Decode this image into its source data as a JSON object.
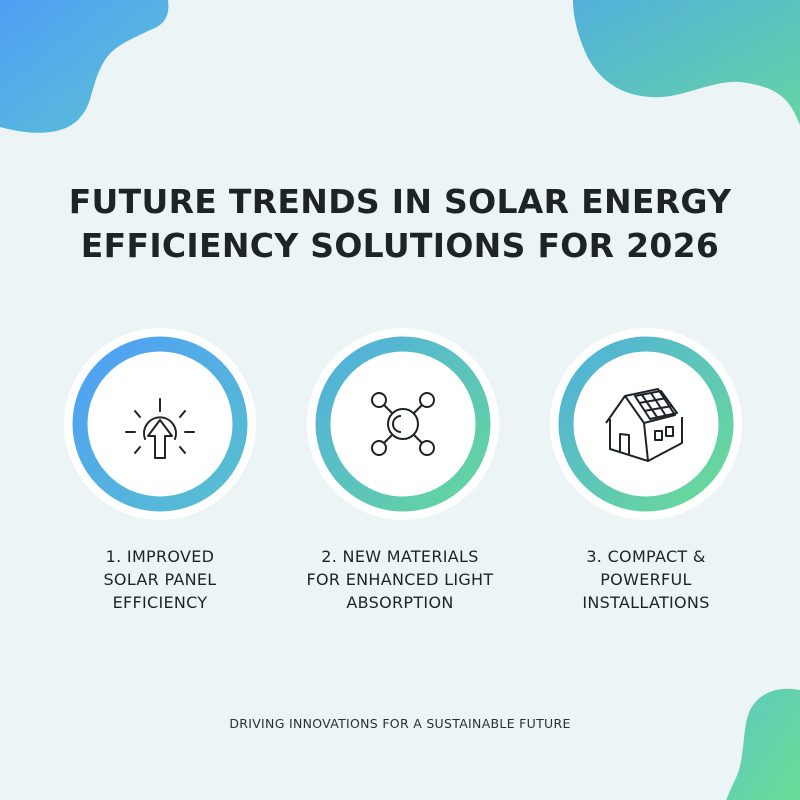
{
  "title": {
    "line1": "FUTURE TRENDS IN SOLAR ENERGY",
    "line2": "EFFICIENCY SOLUTIONS FOR 2026"
  },
  "colors": {
    "background": "#edf4f5",
    "gradient_start": "#4f9ff5",
    "gradient_mid": "#57bdd0",
    "gradient_end": "#6ada98",
    "text": "#1d2327"
  },
  "items": [
    {
      "icon": "sun-arrow-up-icon",
      "lines": [
        "1. IMPROVED",
        "SOLAR PANEL",
        "EFFICIENCY"
      ]
    },
    {
      "icon": "molecule-network-icon",
      "lines": [
        "2. NEW MATERIALS",
        "FOR ENHANCED LIGHT",
        "ABSORPTION"
      ]
    },
    {
      "icon": "house-solar-panel-icon",
      "lines": [
        "3. COMPACT &",
        "POWERFUL",
        "INSTALLATIONS"
      ]
    }
  ],
  "footer": "DRIVING INNOVATIONS FOR A SUSTAINABLE FUTURE"
}
